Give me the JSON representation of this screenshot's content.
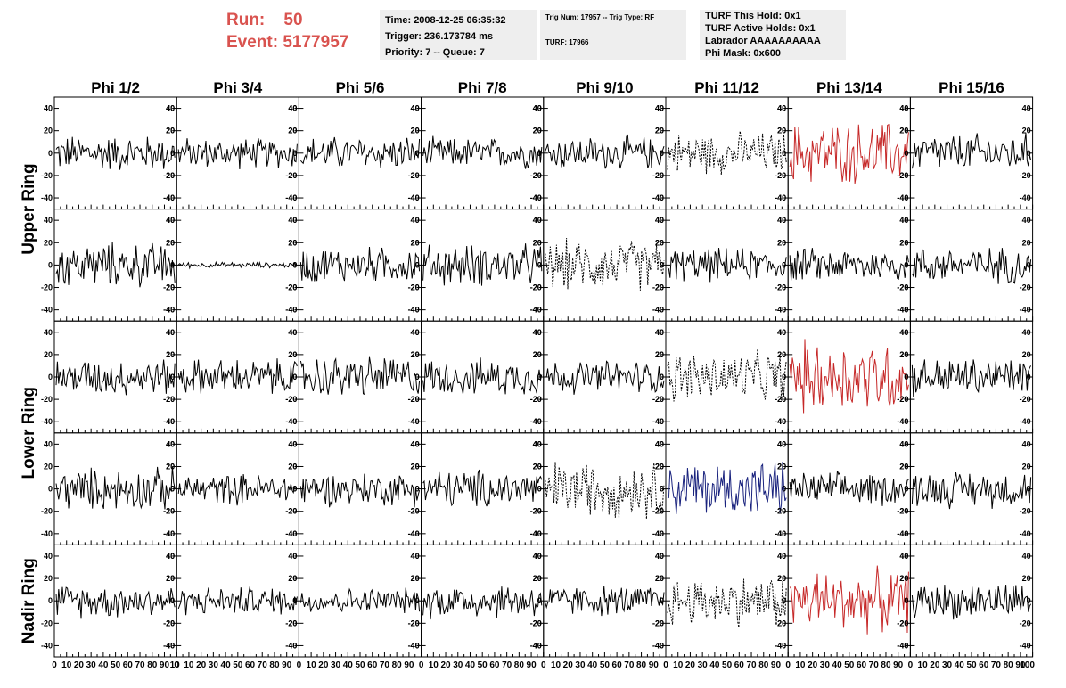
{
  "header": {
    "run_label": "Run:",
    "run_value": "50",
    "event_label": "Event:",
    "event_value": "5177957",
    "time_line": "Time: 2008-12-25 06:35:32",
    "trigger_line": "Trigger: 236.173784 ms",
    "priority_line": "Priority: 7 -- Queue: 7",
    "trig_line": "Trig Num: 17957 -- Trig Type: RF",
    "turf_line": "TURF: 17966",
    "turf_hold_line": "TURF This Hold: 0x1",
    "turf_active_line": "TURF Active Holds: 0x1",
    "labrador_line": "Labrador AAAAAAAAAA",
    "phi_mask_line": "Phi Mask: 0x600",
    "run_color": "#d9534f"
  },
  "chart_data": {
    "type": "line",
    "columns": [
      "Phi 1/2",
      "Phi 3/4",
      "Phi 5/6",
      "Phi 7/8",
      "Phi 9/10",
      "Phi 11/12",
      "Phi 13/14",
      "Phi 15/16"
    ],
    "rows": [
      "Upper Ring",
      "Lower Ring",
      "Nadir Ring"
    ],
    "ylim": [
      -50,
      50
    ],
    "y_ticks": [
      -40,
      -20,
      0,
      20,
      40
    ],
    "xlim": [
      0,
      100
    ],
    "x_ticks": [
      0,
      10,
      20,
      30,
      40,
      50,
      60,
      70,
      80,
      90
    ],
    "x_last_tick_first": "100",
    "x_last_tick_other": "10",
    "samples": 96,
    "grid": false,
    "trace_colors": {
      "normal": "#000000",
      "red": "#c62828",
      "blue": "#1a237e"
    },
    "panels": [
      [
        {
          "amp": 13,
          "style": "solid",
          "color": "normal"
        },
        {
          "amp": 11,
          "style": "solid",
          "color": "normal"
        },
        {
          "amp": 12,
          "style": "solid",
          "color": "normal"
        },
        {
          "amp": 11,
          "style": "solid",
          "color": "normal"
        },
        {
          "amp": 12,
          "style": "solid",
          "color": "normal"
        },
        {
          "amp": 15,
          "style": "dotted",
          "color": "normal"
        },
        {
          "amp": 22,
          "style": "solid",
          "color": "red"
        },
        {
          "amp": 14,
          "style": "solid",
          "color": "normal"
        }
      ],
      [
        {
          "amp": 16,
          "style": "solid",
          "color": "normal"
        },
        {
          "amp": 2,
          "style": "solid",
          "color": "normal"
        },
        {
          "amp": 13,
          "style": "solid",
          "color": "normal"
        },
        {
          "amp": 15,
          "style": "solid",
          "color": "normal"
        },
        {
          "amp": 18,
          "style": "dotted",
          "color": "normal"
        },
        {
          "amp": 12,
          "style": "solid",
          "color": "normal"
        },
        {
          "amp": 12,
          "style": "solid",
          "color": "normal"
        },
        {
          "amp": 13,
          "style": "solid",
          "color": "normal"
        }
      ],
      [
        {
          "amp": 13,
          "style": "solid",
          "color": "normal"
        },
        {
          "amp": 13,
          "style": "solid",
          "color": "normal"
        },
        {
          "amp": 15,
          "style": "solid",
          "color": "normal"
        },
        {
          "amp": 13,
          "style": "solid",
          "color": "normal"
        },
        {
          "amp": 12,
          "style": "solid",
          "color": "normal"
        },
        {
          "amp": 18,
          "style": "dotted",
          "color": "normal"
        },
        {
          "amp": 26,
          "style": "solid",
          "color": "red"
        },
        {
          "amp": 14,
          "style": "solid",
          "color": "normal"
        }
      ],
      [
        {
          "amp": 15,
          "style": "solid",
          "color": "normal"
        },
        {
          "amp": 11,
          "style": "solid",
          "color": "normal"
        },
        {
          "amp": 12,
          "style": "solid",
          "color": "normal"
        },
        {
          "amp": 14,
          "style": "solid",
          "color": "normal"
        },
        {
          "amp": 20,
          "style": "dotted",
          "color": "normal"
        },
        {
          "amp": 20,
          "style": "solid",
          "color": "blue"
        },
        {
          "amp": 12,
          "style": "solid",
          "color": "normal"
        },
        {
          "amp": 13,
          "style": "solid",
          "color": "normal"
        }
      ],
      [
        {
          "amp": 12,
          "style": "solid",
          "color": "normal"
        },
        {
          "amp": 10,
          "style": "solid",
          "color": "normal"
        },
        {
          "amp": 9,
          "style": "solid",
          "color": "normal"
        },
        {
          "amp": 13,
          "style": "solid",
          "color": "normal"
        },
        {
          "amp": 11,
          "style": "solid",
          "color": "normal"
        },
        {
          "amp": 18,
          "style": "dotted",
          "color": "normal"
        },
        {
          "amp": 22,
          "style": "solid",
          "color": "red"
        },
        {
          "amp": 13,
          "style": "solid",
          "color": "normal"
        }
      ]
    ]
  }
}
